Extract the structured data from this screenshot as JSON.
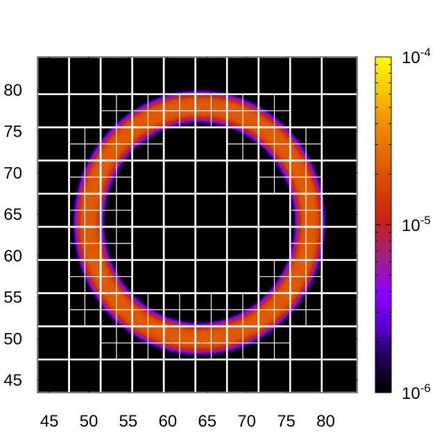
{
  "chart_data": {
    "type": "heatmap",
    "description_free": true,
    "xlim": [
      43.5,
      84
    ],
    "ylim": [
      43.5,
      84
    ],
    "x_ticks": [
      45,
      50,
      55,
      60,
      65,
      70,
      75,
      80
    ],
    "y_ticks": [
      45,
      50,
      55,
      60,
      65,
      70,
      75,
      80
    ],
    "colorbar": {
      "scale": "log",
      "range": [
        1e-06,
        0.0001
      ],
      "ticks": [
        {
          "value": 1e-06,
          "base": "10",
          "exp": "-6"
        },
        {
          "value": 1e-05,
          "base": "10",
          "exp": "-5"
        },
        {
          "value": 0.0001,
          "base": "10",
          "exp": "-4"
        }
      ],
      "colors": [
        "#000000",
        "#1e0050",
        "#5a00d2",
        "#8c00ff",
        "#a0208c",
        "#c81e1e",
        "#d24000",
        "#e66400",
        "#f08c00",
        "#f5c800",
        "#ffff00"
      ]
    },
    "field": {
      "shape": "ring",
      "center": [
        64,
        64
      ],
      "radius": 14,
      "width_sigma": 1.2,
      "peak_value": 2.2e-05,
      "background_value": 1e-06
    },
    "mesh": {
      "coarse_x": [
        43.5,
        47.5,
        51.5,
        55.5,
        59.5,
        63.5,
        67.5,
        71.5,
        75.5,
        79.5,
        84
      ],
      "coarse_y": [
        43.5,
        47.5,
        51.5,
        55.5,
        59.5,
        63.5,
        67.5,
        71.5,
        75.5,
        79.5,
        84
      ],
      "line_color": "#ffffff"
    }
  }
}
